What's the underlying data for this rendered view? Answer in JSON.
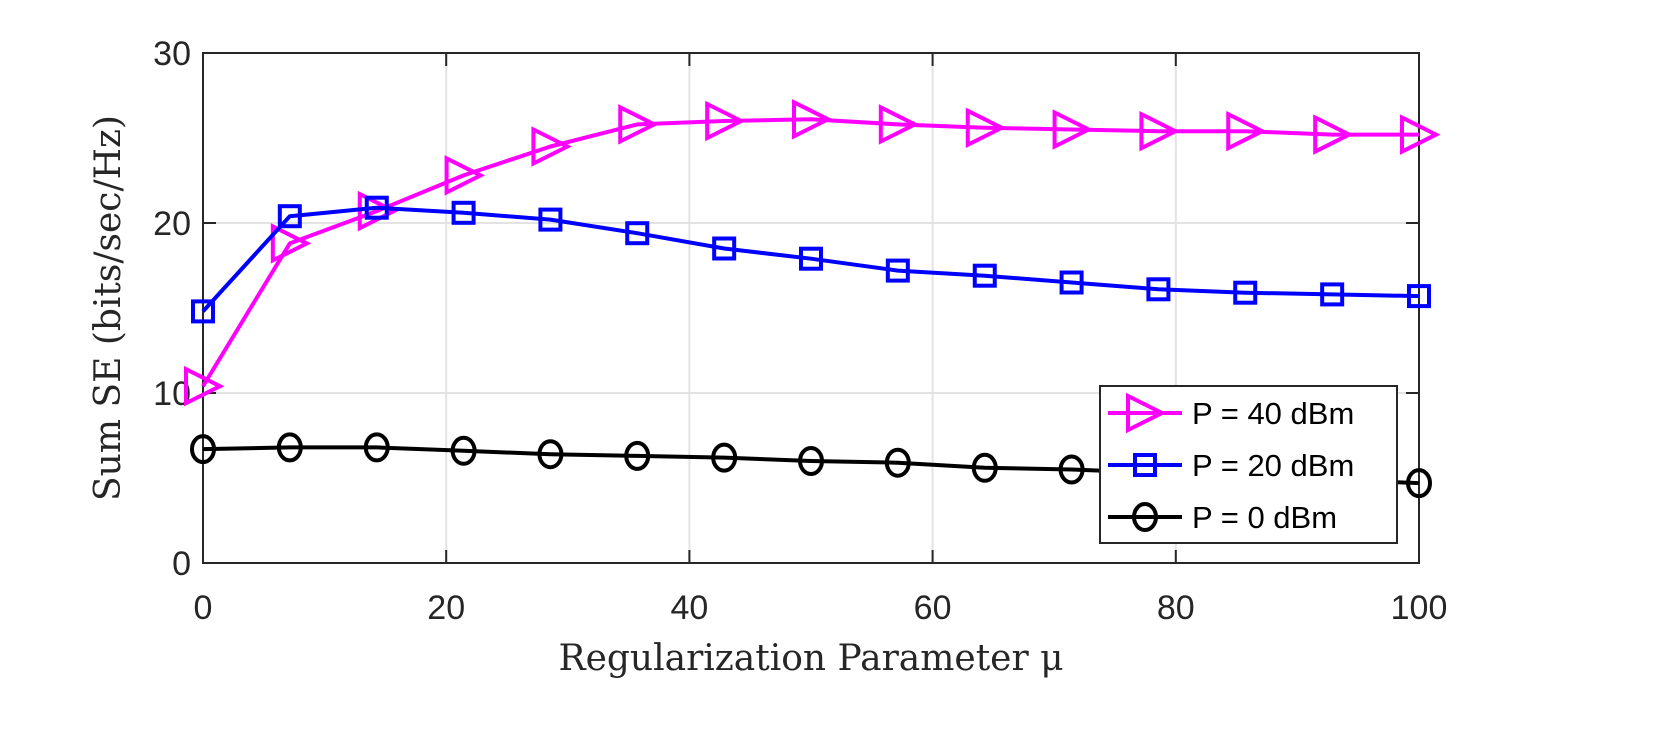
{
  "chart_data": {
    "type": "line",
    "title": "",
    "xlabel": "Regularization Parameter μ",
    "ylabel": "Sum SE (bits/sec/Hz)",
    "xlim": [
      0,
      100
    ],
    "ylim": [
      0,
      30
    ],
    "xticks": [
      0,
      20,
      40,
      60,
      80,
      100
    ],
    "yticks": [
      0,
      10,
      20,
      30
    ],
    "grid": true,
    "legend_position": "bottom-right",
    "x": [
      0,
      7.14,
      14.29,
      21.43,
      28.57,
      35.71,
      42.86,
      50,
      57.14,
      64.29,
      71.43,
      78.57,
      85.71,
      92.86,
      100
    ],
    "series": [
      {
        "name": "P = 40 dBm",
        "color": "#ff00ff",
        "marker": "triangle-right",
        "values": [
          10.4,
          18.8,
          20.7,
          22.8,
          24.5,
          25.8,
          26.0,
          26.1,
          25.8,
          25.6,
          25.5,
          25.4,
          25.4,
          25.2,
          25.2
        ]
      },
      {
        "name": "P = 20 dBm",
        "color": "#0000ff",
        "marker": "square",
        "values": [
          14.8,
          20.4,
          20.9,
          20.6,
          20.2,
          19.4,
          18.5,
          17.9,
          17.2,
          16.9,
          16.5,
          16.1,
          15.9,
          15.8,
          15.7
        ]
      },
      {
        "name": "P = 0 dBm",
        "color": "#000000",
        "marker": "circle",
        "values": [
          6.7,
          6.8,
          6.8,
          6.6,
          6.4,
          6.3,
          6.2,
          6.0,
          5.9,
          5.6,
          5.5,
          5.3,
          5.1,
          4.9,
          4.7
        ]
      }
    ]
  }
}
